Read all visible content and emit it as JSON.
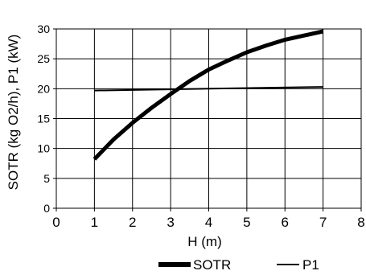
{
  "chart_data": {
    "type": "line",
    "xlabel": "H (m)",
    "ylabel": "SOTR (kg O2/h), P1 (kW)",
    "xlim": [
      0,
      8
    ],
    "ylim": [
      0,
      30
    ],
    "xticks": [
      "0",
      "1",
      "2",
      "3",
      "4",
      "5",
      "6",
      "7",
      "8"
    ],
    "yticks": [
      "0",
      "5",
      "10",
      "15",
      "20",
      "25",
      "30"
    ],
    "grid": true,
    "legend_position": "bottom-right",
    "series": [
      {
        "name": "SOTR",
        "x": [
          1,
          1.5,
          2,
          2.5,
          3,
          3.5,
          4,
          4.5,
          5,
          5.5,
          6,
          6.5,
          7
        ],
        "y": [
          8.2,
          11.5,
          14.3,
          16.8,
          19.1,
          21.3,
          23.2,
          24.7,
          26.1,
          27.2,
          28.2,
          28.9,
          29.6
        ],
        "color": "#000000",
        "line": "thick"
      },
      {
        "name": "P1",
        "x": [
          1,
          7
        ],
        "y": [
          19.7,
          20.3
        ],
        "color": "#000000",
        "line": "thin"
      }
    ]
  }
}
